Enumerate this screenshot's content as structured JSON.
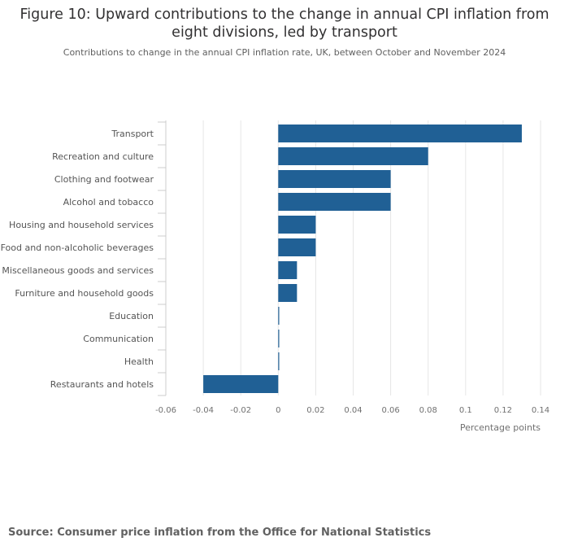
{
  "title": "Figure 10: Upward contributions to the change in annual CPI inflation from eight divisions, led by transport",
  "subtitle": "Contributions to change in the annual CPI inflation rate, UK, between October and November 2024",
  "source": "Source: Consumer price inflation from the Office for National Statistics",
  "colors": {
    "bar": "#206095",
    "grid": "#e6e6e6",
    "axis": "#cccccc"
  },
  "chart_data": {
    "type": "bar",
    "orientation": "horizontal",
    "title": "Figure 10: Upward contributions to the change in annual CPI inflation from eight divisions, led by transport",
    "subtitle": "Contributions to change in the annual CPI inflation rate, UK, between October and November 2024",
    "xlabel": "Percentage points",
    "ylabel": "",
    "xlim": [
      -0.06,
      0.14
    ],
    "grid": true,
    "ticks": [
      "-0.06",
      "-0.04",
      "-0.02",
      "0",
      "0.02",
      "0.04",
      "0.06",
      "0.08",
      "0.1",
      "0.12",
      "0.14"
    ],
    "tick_values": [
      -0.06,
      -0.04,
      -0.02,
      0,
      0.02,
      0.04,
      0.06,
      0.08,
      0.1,
      0.12,
      0.14
    ],
    "categories": [
      "Transport",
      "Recreation and culture",
      "Clothing and footwear",
      "Alcohol and tobacco",
      "Housing and household services",
      "Food and non-alcoholic beverages",
      "Miscellaneous goods and services",
      "Furniture and household goods",
      "Education",
      "Communication",
      "Health",
      "Restaurants and hotels"
    ],
    "values": [
      0.13,
      0.08,
      0.06,
      0.06,
      0.02,
      0.02,
      0.01,
      0.01,
      0.0,
      0.0,
      0.0,
      -0.04
    ]
  }
}
